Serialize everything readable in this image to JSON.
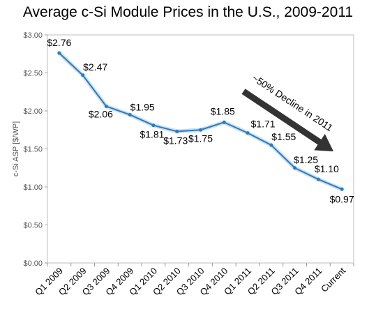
{
  "chart_data": {
    "type": "line",
    "title": "Average c-Si Module Prices in the U.S., 2009-2011",
    "ylabel": "c-Si ASP [$/WP]",
    "xlabel": "",
    "ylim": [
      0,
      3.0
    ],
    "grid": false,
    "categories": [
      "Q1 2009",
      "Q2 2009",
      "Q3 2009",
      "Q4 2009",
      "Q1 2010",
      "Q2 2010",
      "Q3 2010",
      "Q4 2010",
      "Q1 2011",
      "Q2 2011",
      "Q3 2011",
      "Q4 2011",
      "Current"
    ],
    "values": [
      2.76,
      2.47,
      2.06,
      1.95,
      1.81,
      1.73,
      1.75,
      1.85,
      1.71,
      1.55,
      1.25,
      1.1,
      0.97
    ],
    "data_labels": [
      "$2.76",
      "$2.47",
      "$2.06",
      "$1.95",
      "$1.81",
      "$1.73",
      "$1.75",
      "$1.85",
      "$1.71",
      "$1.55",
      "$1.25",
      "$1.10",
      "$0.97"
    ],
    "y_ticks": [
      {
        "value": 0.0,
        "label": "$0.00"
      },
      {
        "value": 0.5,
        "label": "$0.50"
      },
      {
        "value": 1.0,
        "label": "$1.00"
      },
      {
        "value": 1.5,
        "label": "$1.50"
      },
      {
        "value": 2.0,
        "label": "$2.00"
      },
      {
        "value": 2.5,
        "label": "$2.50"
      },
      {
        "value": 3.0,
        "label": "$3.00"
      }
    ],
    "annotation": "~50% Decline in 2011",
    "line_color": "#2a7bbf",
    "arrow_color": "#333333"
  }
}
